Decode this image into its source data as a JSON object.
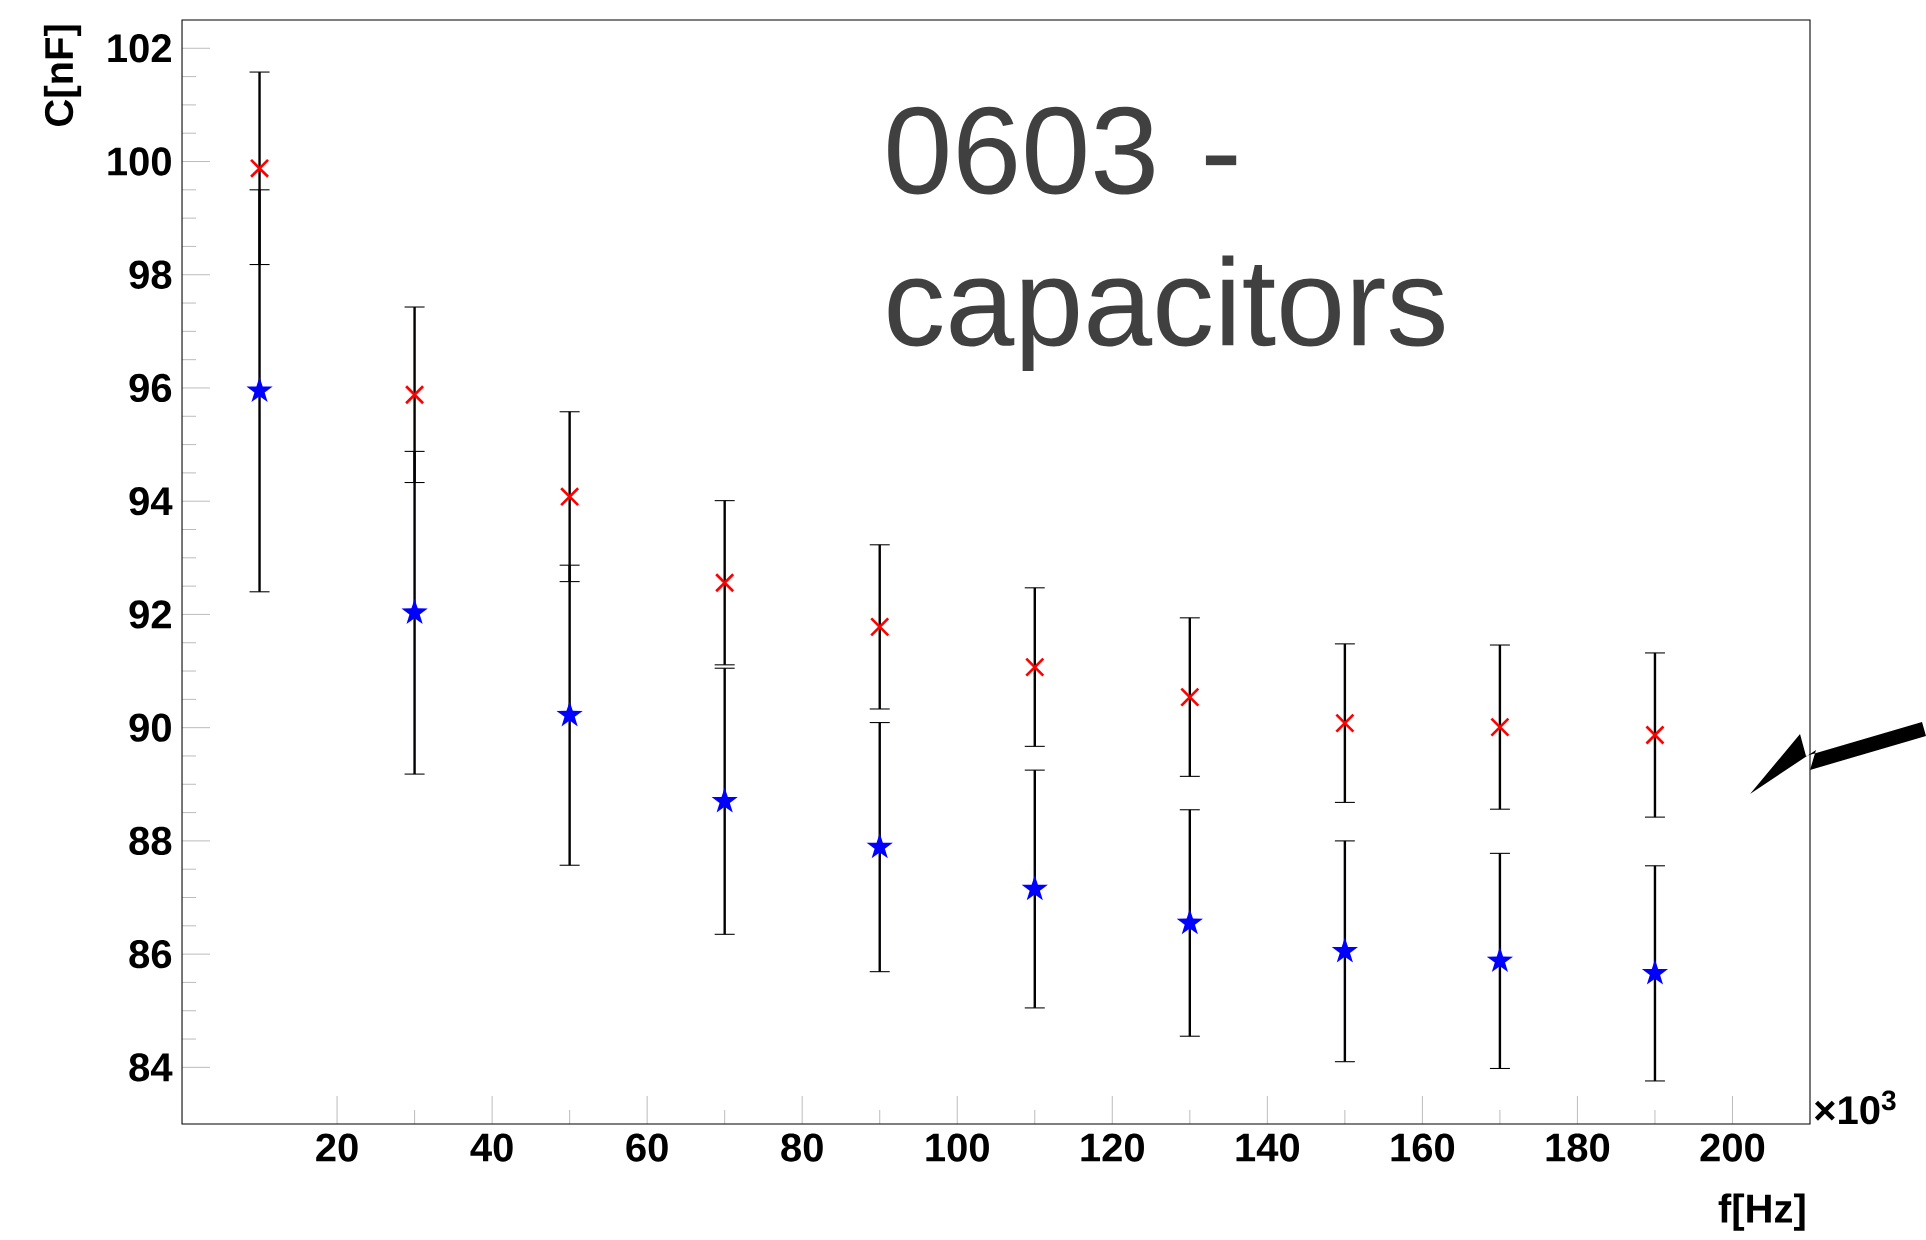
{
  "chart_data": {
    "type": "scatter",
    "xlabel": "f[Hz]",
    "ylabel": "C[nF]",
    "annotations": [
      "0603 - capacitors",
      "×10$^{3}$"
    ],
    "x": [
      10,
      30,
      50,
      70,
      90,
      110,
      130,
      150,
      170,
      190
    ],
    "xlim": [
      0,
      210
    ],
    "xticks": [
      20,
      40,
      60,
      80,
      100,
      120,
      140,
      160,
      180,
      200
    ],
    "ylim": [
      83,
      102.5
    ],
    "yticks": [
      84,
      86,
      88,
      90,
      92,
      94,
      96,
      98,
      100,
      102
    ],
    "series": [
      {
        "color": "#ff0000",
        "marker": "cross",
        "values": [
          99.88,
          95.88,
          94.08,
          92.56,
          91.78,
          91.07,
          90.54,
          90.08,
          90.01,
          89.87
        ],
        "errors": [
          1.7,
          1.55,
          1.5,
          1.45,
          1.45,
          1.4,
          1.4,
          1.4,
          1.45,
          1.45
        ]
      },
      {
        "color": "#0000ff",
        "marker": "star",
        "values": [
          95.95,
          92.03,
          90.22,
          88.7,
          87.89,
          87.15,
          86.55,
          86.05,
          85.88,
          85.66
        ],
        "errors": [
          3.55,
          2.85,
          2.65,
          2.35,
          2.2,
          2.1,
          2.0,
          1.95,
          1.9,
          1.9
        ]
      }
    ]
  }
}
